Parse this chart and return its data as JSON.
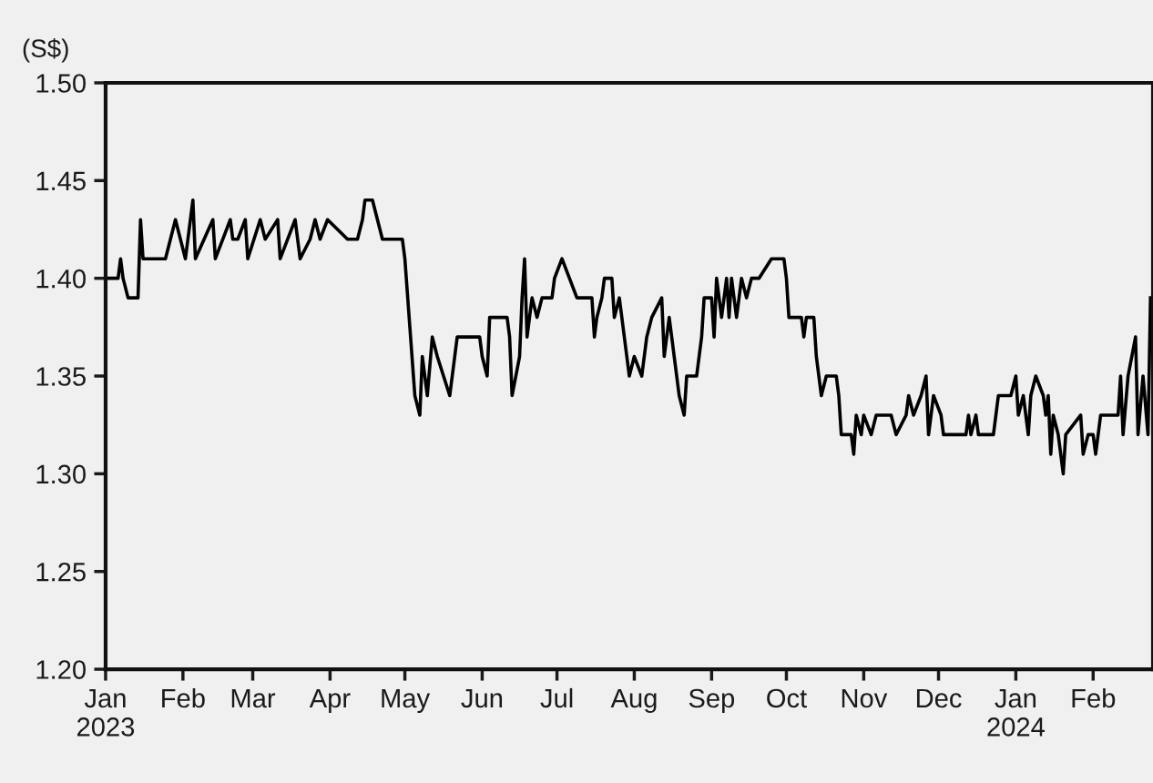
{
  "chart_data": {
    "type": "line",
    "ylabel": "(S$)",
    "x": [
      "2023-01-01",
      "2023-01-06",
      "2023-01-07",
      "2023-01-08",
      "2023-01-10",
      "2023-01-14",
      "2023-01-15",
      "2023-01-16",
      "2023-01-25",
      "2023-01-27",
      "2023-01-29",
      "2023-01-31",
      "2023-02-02",
      "2023-02-05",
      "2023-02-06",
      "2023-02-13",
      "2023-02-14",
      "2023-02-20",
      "2023-02-21",
      "2023-02-23",
      "2023-02-26",
      "2023-02-27",
      "2023-03-04",
      "2023-03-06",
      "2023-03-11",
      "2023-03-12",
      "2023-03-18",
      "2023-03-20",
      "2023-03-24",
      "2023-03-26",
      "2023-03-28",
      "2023-03-31",
      "2023-04-08",
      "2023-04-12",
      "2023-04-14",
      "2023-04-15",
      "2023-04-18",
      "2023-04-20",
      "2023-04-22",
      "2023-04-30",
      "2023-05-01",
      "2023-05-05",
      "2023-05-07",
      "2023-05-08",
      "2023-05-10",
      "2023-05-12",
      "2023-05-14",
      "2023-05-19",
      "2023-05-21",
      "2023-05-22",
      "2023-05-31",
      "2023-06-01",
      "2023-06-03",
      "2023-06-04",
      "2023-06-11",
      "2023-06-12",
      "2023-06-13",
      "2023-06-16",
      "2023-06-17",
      "2023-06-18",
      "2023-06-19",
      "2023-06-21",
      "2023-06-23",
      "2023-06-25",
      "2023-06-29",
      "2023-06-30",
      "2023-07-03",
      "2023-07-06",
      "2023-07-09",
      "2023-07-15",
      "2023-07-16",
      "2023-07-17",
      "2023-07-19",
      "2023-07-20",
      "2023-07-23",
      "2023-07-24",
      "2023-07-26",
      "2023-07-29",
      "2023-07-30",
      "2023-08-01",
      "2023-08-04",
      "2023-08-06",
      "2023-08-08",
      "2023-08-12",
      "2023-08-13",
      "2023-08-15",
      "2023-08-17",
      "2023-08-18",
      "2023-08-19",
      "2023-08-21",
      "2023-08-22",
      "2023-08-26",
      "2023-08-27",
      "2023-08-28",
      "2023-08-29",
      "2023-09-01",
      "2023-09-02",
      "2023-09-03",
      "2023-09-05",
      "2023-09-07",
      "2023-09-08",
      "2023-09-09",
      "2023-09-11",
      "2023-09-13",
      "2023-09-15",
      "2023-09-17",
      "2023-09-20",
      "2023-09-25",
      "2023-09-30",
      "2023-10-01",
      "2023-10-02",
      "2023-10-07",
      "2023-10-08",
      "2023-10-09",
      "2023-10-12",
      "2023-10-13",
      "2023-10-14",
      "2023-10-15",
      "2023-10-17",
      "2023-10-21",
      "2023-10-22",
      "2023-10-23",
      "2023-10-27",
      "2023-10-28",
      "2023-10-29",
      "2023-10-31",
      "2023-11-01",
      "2023-11-04",
      "2023-11-06",
      "2023-11-12",
      "2023-11-14",
      "2023-11-18",
      "2023-11-19",
      "2023-11-21",
      "2023-11-24",
      "2023-11-26",
      "2023-11-27",
      "2023-11-29",
      "2023-12-02",
      "2023-12-03",
      "2023-12-12",
      "2023-12-13",
      "2023-12-14",
      "2023-12-16",
      "2023-12-17",
      "2023-12-23",
      "2023-12-24",
      "2023-12-25",
      "2023-12-30",
      "2024-01-01",
      "2024-01-02",
      "2024-01-04",
      "2024-01-06",
      "2024-01-07",
      "2024-01-09",
      "2024-01-12",
      "2024-01-13",
      "2024-01-14",
      "2024-01-15",
      "2024-01-16",
      "2024-01-18",
      "2024-01-20",
      "2024-01-21",
      "2024-01-27",
      "2024-01-28",
      "2024-01-30",
      "2024-02-01",
      "2024-02-02",
      "2024-02-04",
      "2024-02-11",
      "2024-02-12",
      "2024-02-13",
      "2024-02-15",
      "2024-02-18",
      "2024-02-19",
      "2024-02-21",
      "2024-02-23",
      "2024-02-24"
    ],
    "series": [
      {
        "color": "#000000",
        "values": [
          1.4,
          1.4,
          1.41,
          1.4,
          1.39,
          1.39,
          1.43,
          1.41,
          1.41,
          1.42,
          1.43,
          1.42,
          1.41,
          1.44,
          1.41,
          1.43,
          1.41,
          1.43,
          1.42,
          1.42,
          1.43,
          1.41,
          1.43,
          1.42,
          1.43,
          1.41,
          1.43,
          1.41,
          1.42,
          1.43,
          1.42,
          1.43,
          1.42,
          1.42,
          1.43,
          1.44,
          1.44,
          1.43,
          1.42,
          1.42,
          1.41,
          1.34,
          1.33,
          1.36,
          1.34,
          1.37,
          1.36,
          1.34,
          1.36,
          1.37,
          1.37,
          1.36,
          1.35,
          1.38,
          1.38,
          1.37,
          1.34,
          1.36,
          1.39,
          1.41,
          1.37,
          1.39,
          1.38,
          1.39,
          1.39,
          1.4,
          1.41,
          1.4,
          1.39,
          1.39,
          1.37,
          1.38,
          1.39,
          1.4,
          1.4,
          1.38,
          1.39,
          1.36,
          1.35,
          1.36,
          1.35,
          1.37,
          1.38,
          1.39,
          1.36,
          1.38,
          1.36,
          1.35,
          1.34,
          1.33,
          1.35,
          1.35,
          1.36,
          1.37,
          1.39,
          1.39,
          1.37,
          1.4,
          1.38,
          1.4,
          1.38,
          1.4,
          1.38,
          1.4,
          1.39,
          1.4,
          1.4,
          1.41,
          1.41,
          1.4,
          1.38,
          1.38,
          1.37,
          1.38,
          1.38,
          1.36,
          1.35,
          1.34,
          1.35,
          1.35,
          1.34,
          1.32,
          1.32,
          1.31,
          1.33,
          1.32,
          1.33,
          1.32,
          1.33,
          1.33,
          1.32,
          1.33,
          1.34,
          1.33,
          1.34,
          1.35,
          1.32,
          1.34,
          1.33,
          1.32,
          1.32,
          1.33,
          1.32,
          1.33,
          1.32,
          1.32,
          1.33,
          1.34,
          1.34,
          1.35,
          1.33,
          1.34,
          1.32,
          1.34,
          1.35,
          1.34,
          1.33,
          1.34,
          1.31,
          1.33,
          1.32,
          1.3,
          1.32,
          1.33,
          1.31,
          1.32,
          1.32,
          1.31,
          1.33,
          1.33,
          1.35,
          1.32,
          1.35,
          1.37,
          1.32,
          1.35,
          1.32,
          1.39
        ]
      }
    ],
    "xlim": [
      "2023-01-01",
      "2024-02-25"
    ],
    "xticks": [
      {
        "value": "2023-01-01",
        "label": "Jan\n2023"
      },
      {
        "value": "2023-02-01",
        "label": "Feb"
      },
      {
        "value": "2023-03-01",
        "label": "Mar"
      },
      {
        "value": "2023-04-01",
        "label": "Apr"
      },
      {
        "value": "2023-05-01",
        "label": "May"
      },
      {
        "value": "2023-06-01",
        "label": "Jun"
      },
      {
        "value": "2023-07-01",
        "label": "Jul"
      },
      {
        "value": "2023-08-01",
        "label": "Aug"
      },
      {
        "value": "2023-09-01",
        "label": "Sep"
      },
      {
        "value": "2023-10-01",
        "label": "Oct"
      },
      {
        "value": "2023-11-01",
        "label": "Nov"
      },
      {
        "value": "2023-12-01",
        "label": "Dec"
      },
      {
        "value": "2024-01-01",
        "label": "Jan\n2024"
      },
      {
        "value": "2024-02-01",
        "label": "Feb"
      }
    ],
    "ylim": [
      1.2,
      1.5
    ],
    "yticks": [
      {
        "value": 1.2,
        "label": "1.20"
      },
      {
        "value": 1.25,
        "label": "1.25"
      },
      {
        "value": 1.3,
        "label": "1.30"
      },
      {
        "value": 1.35,
        "label": "1.35"
      },
      {
        "value": 1.4,
        "label": "1.40"
      },
      {
        "value": 1.45,
        "label": "1.45"
      },
      {
        "value": 1.5,
        "label": "1.50"
      }
    ],
    "grid": false,
    "legend": false,
    "marker": "none",
    "line_style": "solid"
  }
}
